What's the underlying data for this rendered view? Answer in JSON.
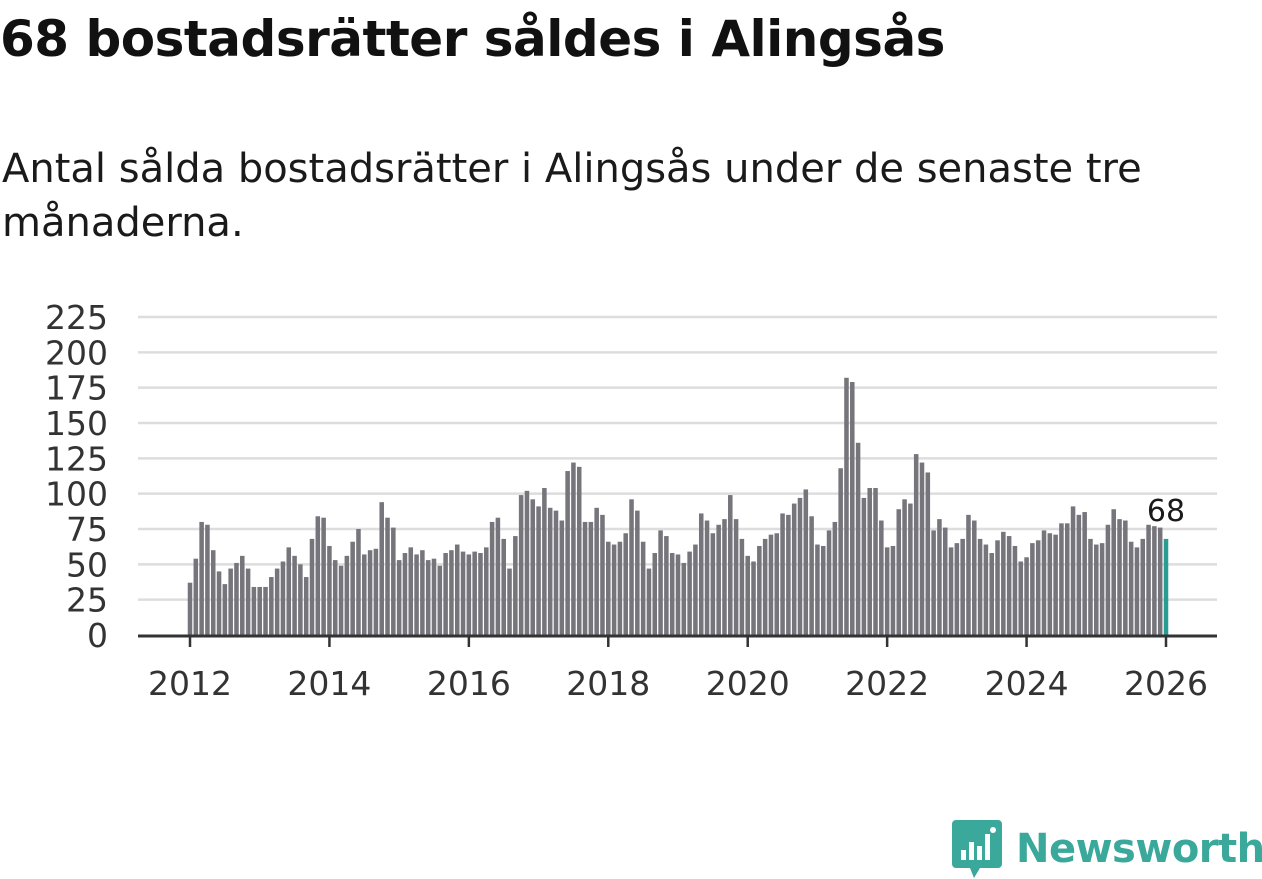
{
  "header": {
    "title": "68 bostadsrätter såldes i Alingsås",
    "subtitle": "Antal sålda bostadsrätter i Alingsås under de senaste tre månaderna."
  },
  "colors": {
    "bar": "#75757b",
    "highlight": "#2a9d93",
    "grid": "#dddddd",
    "axis": "#333333",
    "brand": "#3aa89a"
  },
  "brand": {
    "name": "Newsworthy",
    "icon": "newsworthy-logo-icon"
  },
  "chart_data": {
    "type": "bar",
    "title": "68 bostadsrätter såldes i Alingsås",
    "xlabel": "",
    "ylabel": "",
    "ylim": [
      0,
      225
    ],
    "yticks": [
      0,
      25,
      50,
      75,
      100,
      125,
      150,
      175,
      200,
      225
    ],
    "xticks": [
      "2012",
      "2014",
      "2016",
      "2018",
      "2020",
      "2022",
      "2024",
      "2026"
    ],
    "grid": true,
    "highlight_label": "68",
    "x_start": "2012-01",
    "x_end": "2026-01",
    "values": [
      37,
      54,
      80,
      78,
      60,
      45,
      36,
      47,
      51,
      56,
      47,
      34,
      34,
      34,
      41,
      47,
      52,
      62,
      56,
      50,
      41,
      68,
      84,
      83,
      63,
      53,
      49,
      56,
      66,
      75,
      57,
      60,
      61,
      94,
      83,
      76,
      53,
      58,
      62,
      57,
      60,
      53,
      54,
      49,
      58,
      60,
      64,
      59,
      57,
      59,
      58,
      62,
      80,
      83,
      68,
      47,
      70,
      99,
      102,
      96,
      91,
      104,
      90,
      88,
      81,
      116,
      122,
      119,
      80,
      80,
      90,
      85,
      66,
      64,
      66,
      72,
      96,
      88,
      66,
      47,
      58,
      74,
      70,
      58,
      57,
      51,
      59,
      64,
      86,
      81,
      72,
      78,
      82,
      99,
      82,
      68,
      56,
      52,
      63,
      68,
      71,
      72,
      86,
      85,
      93,
      97,
      103,
      84,
      64,
      63,
      74,
      80,
      118,
      182,
      179,
      136,
      97,
      104,
      104,
      81,
      62,
      63,
      89,
      96,
      93,
      128,
      122,
      115,
      74,
      82,
      76,
      62,
      65,
      68,
      85,
      81,
      68,
      64,
      58,
      67,
      73,
      70,
      63,
      52,
      55,
      65,
      67,
      74,
      72,
      71,
      79,
      79,
      91,
      85,
      87,
      68,
      64,
      65,
      78,
      89,
      82,
      81,
      66,
      62,
      68,
      78,
      77,
      76,
      68
    ]
  }
}
